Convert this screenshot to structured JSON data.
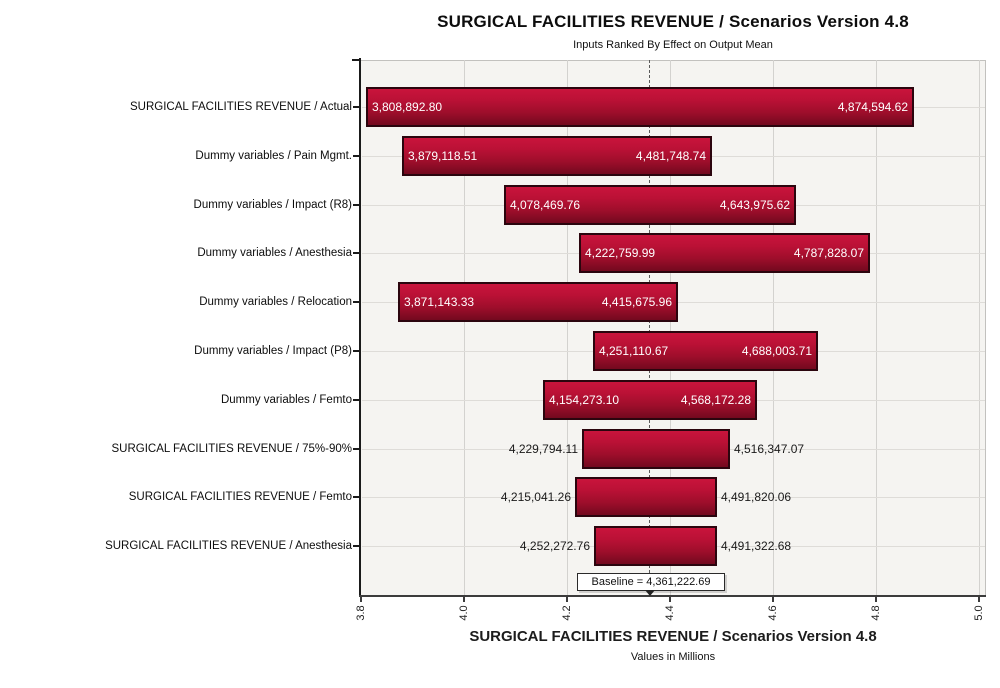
{
  "title": "SURGICAL FACILITIES REVENUE / Scenarios Version 4.8",
  "subtitle": "Inputs Ranked By Effect on Output Mean",
  "xaxis": {
    "title": "SURGICAL FACILITIES REVENUE / Scenarios Version 4.8",
    "units_label": "Values in Millions",
    "tick_labels": [
      "3.8",
      "4.0",
      "4.2",
      "4.4",
      "4.6",
      "4.8",
      "5.0"
    ]
  },
  "chart_data": {
    "type": "bar",
    "subtype": "tornado-range",
    "title": "SURGICAL FACILITIES REVENUE / Scenarios Version 4.8",
    "subtitle": "Inputs Ranked By Effect on Output Mean",
    "xlabel": "SURGICAL FACILITIES REVENUE / Scenarios Version 4.8",
    "xlabel_units": "Values in Millions",
    "xlim_millions": [
      3.8,
      5.0
    ],
    "x_ticks_millions": [
      3.8,
      4.0,
      4.2,
      4.4,
      4.6,
      4.8,
      5.0
    ],
    "grid": true,
    "baseline_value": 4361222.69,
    "baseline_label": "Baseline = 4,361,222.69",
    "categories": [
      "SURGICAL FACILITIES REVENUE / Actual",
      "Dummy variables / Pain Mgmt.",
      "Dummy variables / Impact (R8)",
      "Dummy variables / Anesthesia",
      "Dummy variables / Relocation",
      "Dummy variables / Impact (P8)",
      "Dummy variables / Femto",
      "SURGICAL FACILITIES REVENUE / 75%-90%",
      "SURGICAL FACILITIES REVENUE / Femto",
      "SURGICAL FACILITIES REVENUE / Anesthesia"
    ],
    "bars": [
      {
        "label": "SURGICAL FACILITIES REVENUE / Actual",
        "low": 3808892.8,
        "high": 4874594.62,
        "low_text": "3,808,892.80",
        "high_text": "4,874,594.62"
      },
      {
        "label": "Dummy variables / Pain Mgmt.",
        "low": 3879118.51,
        "high": 4481748.74,
        "low_text": "3,879,118.51",
        "high_text": "4,481,748.74"
      },
      {
        "label": "Dummy variables / Impact (R8)",
        "low": 4078469.76,
        "high": 4643975.62,
        "low_text": "4,078,469.76",
        "high_text": "4,643,975.62"
      },
      {
        "label": "Dummy variables / Anesthesia",
        "low": 4222759.99,
        "high": 4787828.07,
        "low_text": "4,222,759.99",
        "high_text": "4,787,828.07"
      },
      {
        "label": "Dummy variables / Relocation",
        "low": 3871143.33,
        "high": 4415675.96,
        "low_text": "3,871,143.33",
        "high_text": "4,415,675.96"
      },
      {
        "label": "Dummy variables / Impact (P8)",
        "low": 4251110.67,
        "high": 4688003.71,
        "low_text": "4,251,110.67",
        "high_text": "4,688,003.71"
      },
      {
        "label": "Dummy variables / Femto",
        "low": 4154273.1,
        "high": 4568172.28,
        "low_text": "4,154,273.10",
        "high_text": "4,568,172.28"
      },
      {
        "label": "SURGICAL FACILITIES REVENUE / 75%-90%",
        "low": 4229794.11,
        "high": 4516347.07,
        "low_text": "4,229,794.11",
        "high_text": "4,516,347.07"
      },
      {
        "label": "SURGICAL FACILITIES REVENUE / Femto",
        "low": 4215041.26,
        "high": 4491820.06,
        "low_text": "4,215,041.26",
        "high_text": "4,491,820.06"
      },
      {
        "label": "SURGICAL FACILITIES REVENUE / Anesthesia",
        "low": 4252272.76,
        "high": 4491322.68,
        "low_text": "4,252,272.76",
        "high_text": "4,491,322.68"
      }
    ],
    "colors": {
      "bar_gradient_top": "#c9143c",
      "bar_gradient_bottom": "#73091f",
      "bar_border": "#2b050e",
      "plot_background": "#f5f4f1",
      "gridline": "#d3d2cf",
      "baseline_line": "#5a5a5a",
      "value_label_inside": "#ffffff",
      "value_label_outside": "#1a1a1a"
    }
  }
}
